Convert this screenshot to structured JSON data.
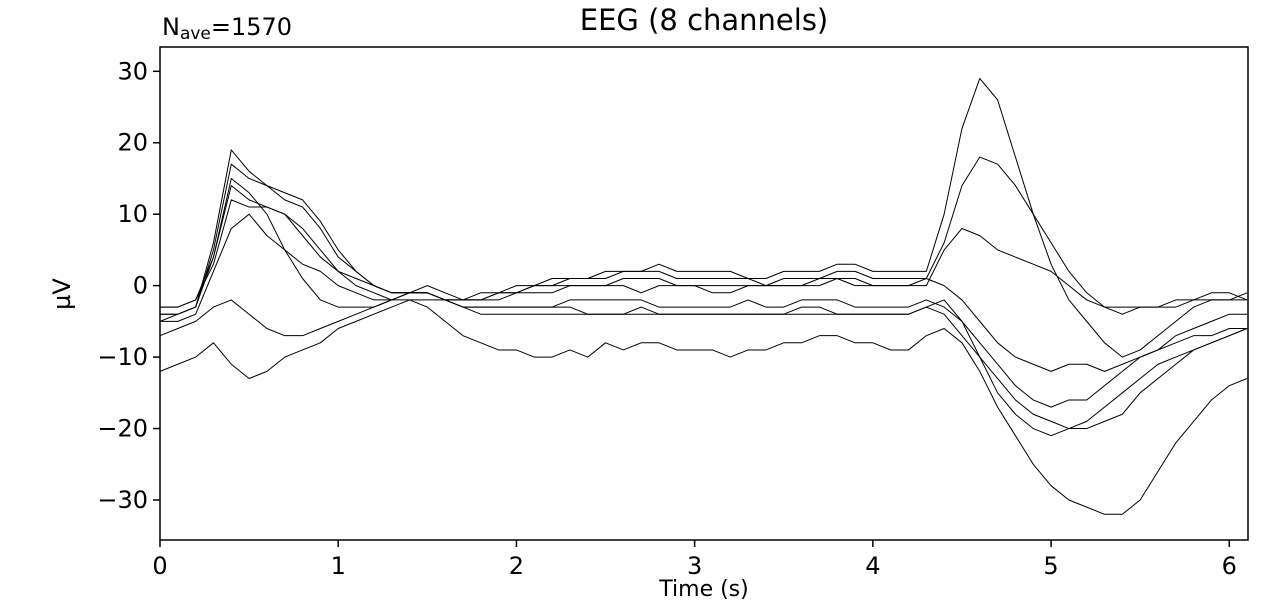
{
  "chart_data": {
    "type": "line",
    "title": "EEG (8 channels)",
    "annotation": {
      "main": "N",
      "sub": "ave",
      "rest": "=1570"
    },
    "ylabel": "µV",
    "xlabel": "Time (s)",
    "x": [
      0,
      0.1,
      0.2,
      0.3,
      0.4,
      0.5,
      0.6,
      0.7,
      0.8,
      0.9,
      1,
      1.1,
      1.2,
      1.3,
      1.4,
      1.5,
      1.6,
      1.7,
      1.8,
      1.9,
      2,
      2.1,
      2.2,
      2.3,
      2.4,
      2.5,
      2.6,
      2.7,
      2.8,
      2.9,
      3,
      3.1,
      3.2,
      3.3,
      3.4,
      3.5,
      3.6,
      3.7,
      3.8,
      3.9,
      4,
      4.1,
      4.2,
      4.3,
      4.4,
      4.5,
      4.6,
      4.7,
      4.8,
      4.9,
      5,
      5.1,
      5.2,
      5.3,
      5.4,
      5.5,
      5.6,
      5.7,
      5.8,
      5.9,
      6,
      6.1
    ],
    "series": [
      {
        "color": "#000000",
        "values": [
          -4,
          -4,
          -3,
          6,
          19,
          16,
          14,
          13,
          12,
          9,
          5,
          2,
          0,
          -1,
          -1,
          -1,
          -2,
          -2,
          -2,
          -1,
          -1,
          0,
          0,
          1,
          1,
          2,
          2,
          2,
          3,
          2,
          2,
          2,
          2,
          1,
          1,
          2,
          2,
          2,
          3,
          3,
          2,
          2,
          2,
          2,
          10,
          22,
          29,
          26,
          18,
          10,
          3,
          -2,
          -5,
          -8,
          -10,
          -9,
          -7,
          -5,
          -3,
          -2,
          -2,
          -1
        ]
      },
      {
        "color": "#000000",
        "values": [
          -5,
          -4,
          -3,
          5,
          17,
          15,
          14,
          12,
          11,
          8,
          4,
          2,
          0,
          -1,
          -1,
          -1,
          -2,
          -2,
          -1,
          -1,
          0,
          0,
          1,
          1,
          1,
          1,
          2,
          2,
          2,
          1,
          1,
          1,
          1,
          1,
          0,
          1,
          1,
          1,
          2,
          2,
          1,
          1,
          1,
          1,
          6,
          14,
          18,
          17,
          14,
          10,
          6,
          2,
          -1,
          -3,
          -4,
          -3,
          -3,
          -2,
          -2,
          -1,
          -1,
          -2
        ]
      },
      {
        "color": "#000000",
        "values": [
          -3,
          -3,
          -2,
          4,
          14,
          12,
          11,
          10,
          8,
          5,
          2,
          1,
          0,
          -1,
          -1,
          -1,
          -2,
          -2,
          -2,
          -1,
          -1,
          0,
          0,
          0,
          0,
          0,
          1,
          1,
          1,
          0,
          0,
          0,
          0,
          0,
          0,
          0,
          0,
          1,
          1,
          1,
          0,
          0,
          0,
          0,
          5,
          8,
          7,
          5,
          4,
          3,
          2,
          0,
          -2,
          -3,
          -3,
          -3,
          -3,
          -3,
          -2,
          -2,
          -2,
          -2
        ]
      },
      {
        "color": "#000000",
        "values": [
          -12,
          -11,
          -10,
          -8,
          -11,
          -13,
          -12,
          -10,
          -9,
          -8,
          -6,
          -5,
          -4,
          -3,
          -2,
          -3,
          -5,
          -7,
          -8,
          -9,
          -9,
          -10,
          -10,
          -9,
          -10,
          -8,
          -9,
          -8,
          -8,
          -9,
          -9,
          -9,
          -10,
          -9,
          -9,
          -8,
          -8,
          -7,
          -7,
          -8,
          -8,
          -9,
          -9,
          -7,
          -6,
          -8,
          -12,
          -17,
          -21,
          -25,
          -28,
          -30,
          -31,
          -32,
          -32,
          -30,
          -26,
          -22,
          -19,
          -16,
          -14,
          -13
        ]
      },
      {
        "color": "#000000",
        "values": [
          -7,
          -6,
          -5,
          -3,
          -2,
          -4,
          -6,
          -7,
          -7,
          -6,
          -5,
          -4,
          -3,
          -2,
          -2,
          -2,
          -2,
          -3,
          -3,
          -3,
          -3,
          -3,
          -3,
          -3,
          -4,
          -4,
          -4,
          -3,
          -4,
          -4,
          -4,
          -4,
          -4,
          -4,
          -4,
          -4,
          -3,
          -3,
          -4,
          -4,
          -4,
          -4,
          -4,
          -3,
          -4,
          -7,
          -10,
          -13,
          -16,
          -18,
          -19,
          -20,
          -20,
          -19,
          -18,
          -15,
          -13,
          -11,
          -9,
          -8,
          -7,
          -6
        ]
      },
      {
        "color": "#000000",
        "values": [
          -5,
          -5,
          -4,
          2,
          8,
          10,
          7,
          5,
          3,
          2,
          0,
          -1,
          -2,
          -2,
          -1,
          -1,
          -2,
          -3,
          -3,
          -3,
          -3,
          -3,
          -3,
          -2,
          -2,
          -2,
          -2,
          -2,
          -3,
          -3,
          -3,
          -3,
          -3,
          -2,
          -3,
          -3,
          -2,
          -2,
          -2,
          -3,
          -3,
          -3,
          -3,
          -2,
          -3,
          -5,
          -8,
          -11,
          -14,
          -16,
          -17,
          -16,
          -16,
          -14,
          -12,
          -10,
          -9,
          -7,
          -6,
          -5,
          -4,
          -4
        ]
      },
      {
        "color": "#000000",
        "values": [
          -4,
          -4,
          -3,
          4,
          15,
          13,
          10,
          5,
          1,
          -2,
          -3,
          -3,
          -3,
          -2,
          -1,
          -1,
          -2,
          -3,
          -4,
          -4,
          -4,
          -4,
          -4,
          -4,
          -4,
          -4,
          -4,
          -4,
          -4,
          -4,
          -4,
          -4,
          -4,
          -4,
          -4,
          -4,
          -4,
          -4,
          -4,
          -4,
          -4,
          -4,
          -4,
          -3,
          -2,
          -5,
          -10,
          -15,
          -18,
          -20,
          -21,
          -20,
          -19,
          -17,
          -15,
          -13,
          -11,
          -10,
          -9,
          -8,
          -7,
          -6
        ]
      },
      {
        "color": "#000000",
        "values": [
          -3,
          -3,
          -2,
          3,
          12,
          11,
          11,
          10,
          7,
          4,
          2,
          0,
          -1,
          -2,
          -1,
          0,
          -1,
          -2,
          -2,
          -2,
          -1,
          -1,
          -1,
          0,
          0,
          0,
          0,
          -1,
          0,
          0,
          0,
          -1,
          -1,
          0,
          0,
          0,
          0,
          0,
          1,
          0,
          0,
          0,
          0,
          1,
          0,
          -2,
          -5,
          -8,
          -10,
          -11,
          -12,
          -11,
          -11,
          -12,
          -11,
          -10,
          -9,
          -8,
          -7,
          -7,
          -6,
          -6
        ]
      }
    ],
    "xlim": [
      0,
      6.105
    ],
    "xticks": [
      0,
      1,
      2,
      3,
      4,
      5,
      6
    ],
    "ylim": [
      -35.6,
      33.4
    ],
    "yticks": [
      {
        "value": -30,
        "label": "−30"
      },
      {
        "value": -20,
        "label": "−20"
      },
      {
        "value": -10,
        "label": "−10"
      },
      0,
      10,
      20,
      30
    ],
    "grid": false
  }
}
